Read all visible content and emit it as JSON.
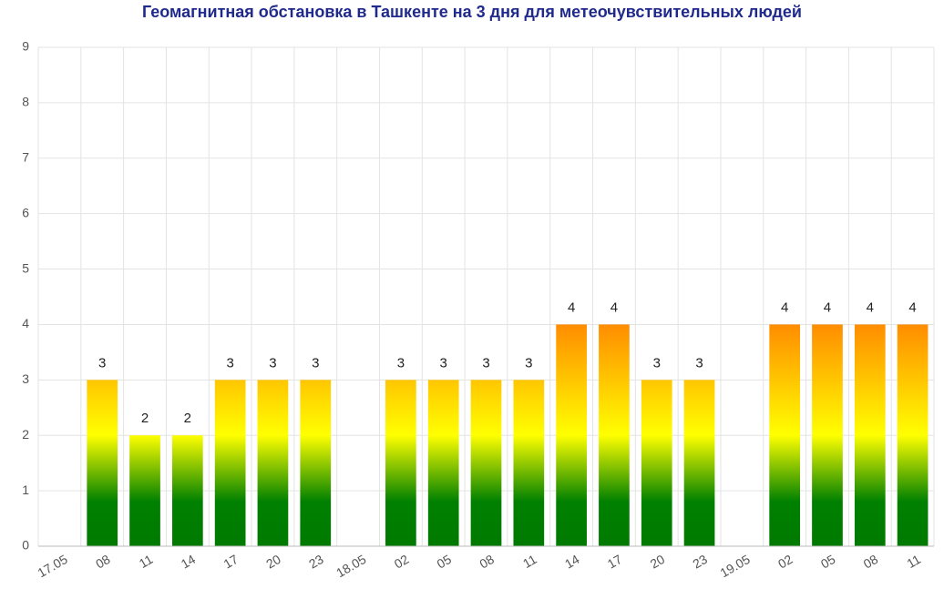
{
  "chart_data": {
    "type": "bar",
    "title": "Геомагнитная обстановка в Ташкенте на 3 дня для метеочувствительных людей",
    "categories": [
      "17.05",
      "08",
      "11",
      "14",
      "17",
      "20",
      "23",
      "18.05",
      "02",
      "05",
      "08",
      "11",
      "14",
      "17",
      "20",
      "23",
      "19.05",
      "02",
      "05",
      "08",
      "11"
    ],
    "values": [
      null,
      3,
      2,
      2,
      3,
      3,
      3,
      null,
      3,
      3,
      3,
      3,
      4,
      4,
      3,
      3,
      null,
      4,
      4,
      4,
      4
    ],
    "ylim": [
      0,
      9
    ],
    "yticks": [
      0,
      1,
      2,
      3,
      4,
      5,
      6,
      7,
      8,
      9
    ],
    "grid": true
  }
}
